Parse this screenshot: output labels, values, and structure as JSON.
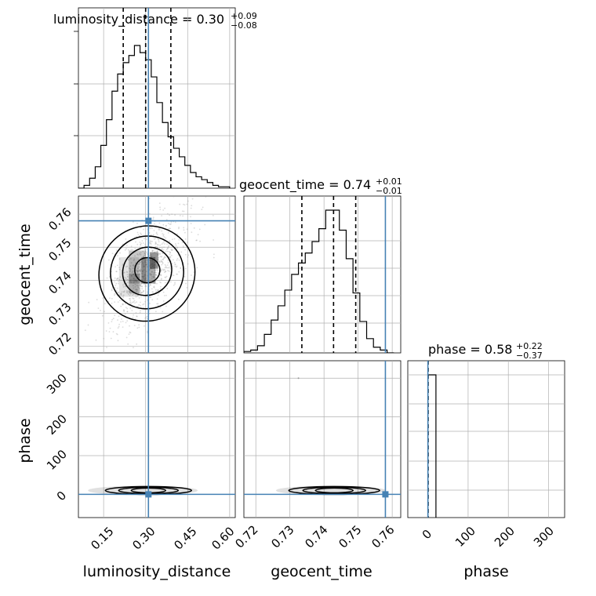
{
  "colors": {
    "truth": "#4682b4",
    "hist": "#000000",
    "grid": "#b0b0b0",
    "scatter": "#9a9a9a"
  },
  "chart_data": [
    {
      "type": "histogram",
      "panel": "luminosity_distance-hist",
      "title": {
        "main": "luminosity_distance = 0.30",
        "sup": "+0.09",
        "sub": "−0.08"
      },
      "x": [
        0.06,
        0.08,
        0.1,
        0.12,
        0.14,
        0.16,
        0.18,
        0.2,
        0.22,
        0.24,
        0.26,
        0.28,
        0.3,
        0.32,
        0.34,
        0.36,
        0.38,
        0.4,
        0.42,
        0.44,
        0.46,
        0.48,
        0.5,
        0.52,
        0.54,
        0.56,
        0.58,
        0.6
      ],
      "values": [
        0,
        2,
        7,
        15,
        30,
        48,
        68,
        80,
        88,
        93,
        100,
        95,
        90,
        78,
        60,
        46,
        36,
        28,
        22,
        16,
        11,
        8,
        6,
        4,
        2,
        1,
        1
      ],
      "quantiles": [
        0.22,
        0.3,
        0.39
      ],
      "truth": 0.31,
      "xlim": [
        0.06,
        0.62
      ]
    },
    {
      "type": "histogram",
      "panel": "geocent_time-hist",
      "title": {
        "main": "geocent_time = 0.74",
        "sup": "+0.01",
        "sub": "−0.01"
      },
      "x": [
        0.7165,
        0.7185,
        0.7205,
        0.7225,
        0.7245,
        0.7265,
        0.7285,
        0.7305,
        0.7325,
        0.7345,
        0.7365,
        0.7385,
        0.7405,
        0.7425,
        0.7445,
        0.7465,
        0.7485,
        0.7505,
        0.7525,
        0.7545,
        0.7565,
        0.7585,
        0.7605
      ],
      "values": [
        1,
        2,
        5,
        13,
        23,
        33,
        44,
        55,
        63,
        70,
        78,
        87,
        100,
        100,
        86,
        66,
        42,
        22,
        10,
        4,
        2,
        0
      ],
      "quantiles": [
        0.7335,
        0.7428,
        0.7493
      ],
      "truth": 0.758,
      "xlim": [
        0.7165,
        0.7625
      ]
    },
    {
      "type": "histogram",
      "panel": "phase-hist",
      "title": {
        "main": "phase = 0.58",
        "sup": "+0.22",
        "sub": "−0.37"
      },
      "x": [
        0,
        20
      ],
      "values": [
        100
      ],
      "quantiles": [
        0.21,
        0.58,
        0.8
      ],
      "truth": 0,
      "xlim": [
        -50,
        340
      ]
    },
    {
      "type": "scatter-contour",
      "panel": "geocent_time-vs-luminosity_distance",
      "xlabel": "",
      "ylabel": "geocent_time",
      "center": [
        0.31,
        0.743
      ],
      "spread": [
        0.075,
        0.0085
      ],
      "density_levels": [
        0.2,
        0.4,
        0.6,
        0.8
      ],
      "truth": [
        0.31,
        0.758
      ],
      "xlim": [
        0.06,
        0.62
      ],
      "ylim": [
        0.718,
        0.7655
      ],
      "yticks": [
        "0.72",
        "0.73",
        "0.74",
        "0.75",
        "0.76"
      ]
    },
    {
      "type": "scatter-contour",
      "panel": "phase-vs-luminosity_distance",
      "xlabel": "luminosity_distance",
      "ylabel": "phase",
      "center": [
        0.31,
        10
      ],
      "truth": [
        0.31,
        0
      ],
      "xlim": [
        0.06,
        0.62
      ],
      "ylim": [
        -60,
        345
      ],
      "xticks": [
        "0.15",
        "0.30",
        "0.45",
        "0.60"
      ],
      "yticks": [
        "0",
        "100",
        "200",
        "300"
      ]
    },
    {
      "type": "scatter-contour",
      "panel": "phase-vs-geocent_time",
      "xlabel": "geocent_time",
      "ylabel": "",
      "center": [
        0.743,
        10
      ],
      "truth": [
        0.758,
        0
      ],
      "xlim": [
        0.7165,
        0.7625
      ],
      "ylim": [
        -60,
        345
      ],
      "xticks": [
        "0.72",
        "0.73",
        "0.74",
        "0.75",
        "0.76"
      ]
    },
    {
      "type": "axis",
      "panel": "phase-axis",
      "xlabel": "phase",
      "xticks": [
        "0",
        "100",
        "200",
        "300"
      ]
    }
  ]
}
